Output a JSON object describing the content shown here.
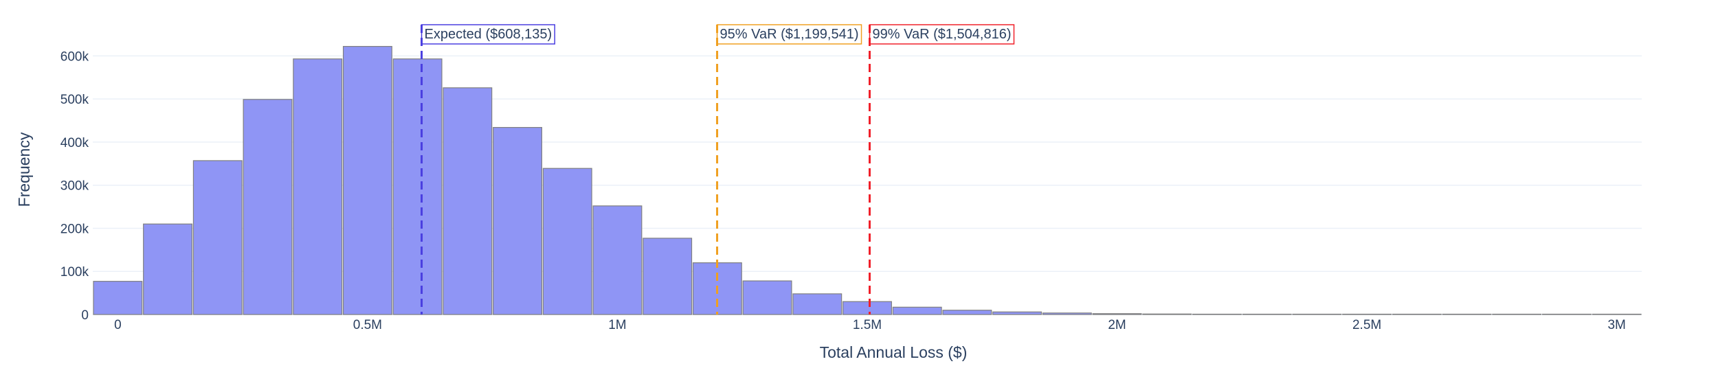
{
  "chart_data": {
    "type": "bar",
    "xlabel": "Total Annual Loss ($)",
    "ylabel": "Frequency",
    "xlim": [
      -50000,
      3050000
    ],
    "ylim": [
      0,
      650000
    ],
    "grid": true,
    "x_ticks": [
      {
        "value": 0,
        "label": "0"
      },
      {
        "value": 500000,
        "label": "0.5M"
      },
      {
        "value": 1000000,
        "label": "1M"
      },
      {
        "value": 1500000,
        "label": "1.5M"
      },
      {
        "value": 2000000,
        "label": "2M"
      },
      {
        "value": 2500000,
        "label": "2.5M"
      },
      {
        "value": 3000000,
        "label": "3M"
      }
    ],
    "y_ticks": [
      {
        "value": 0,
        "label": "0"
      },
      {
        "value": 100000,
        "label": "100k"
      },
      {
        "value": 200000,
        "label": "200k"
      },
      {
        "value": 300000,
        "label": "300k"
      },
      {
        "value": 400000,
        "label": "400k"
      },
      {
        "value": 500000,
        "label": "500k"
      },
      {
        "value": 600000,
        "label": "600k"
      }
    ],
    "bar_color": "#8f95f5",
    "bar_line_color": "#7f7f7f",
    "bins": [
      {
        "x0": -50000,
        "x1": 50000,
        "count": 77000
      },
      {
        "x0": 50000,
        "x1": 150000,
        "count": 210000
      },
      {
        "x0": 150000,
        "x1": 250000,
        "count": 357000
      },
      {
        "x0": 250000,
        "x1": 350000,
        "count": 499000
      },
      {
        "x0": 350000,
        "x1": 450000,
        "count": 593000
      },
      {
        "x0": 450000,
        "x1": 550000,
        "count": 622000
      },
      {
        "x0": 550000,
        "x1": 650000,
        "count": 593000
      },
      {
        "x0": 650000,
        "x1": 750000,
        "count": 526000
      },
      {
        "x0": 750000,
        "x1": 850000,
        "count": 434000
      },
      {
        "x0": 850000,
        "x1": 950000,
        "count": 339000
      },
      {
        "x0": 950000,
        "x1": 1050000,
        "count": 252000
      },
      {
        "x0": 1050000,
        "x1": 1150000,
        "count": 177000
      },
      {
        "x0": 1150000,
        "x1": 1250000,
        "count": 120000
      },
      {
        "x0": 1250000,
        "x1": 1350000,
        "count": 78000
      },
      {
        "x0": 1350000,
        "x1": 1450000,
        "count": 48000
      },
      {
        "x0": 1450000,
        "x1": 1550000,
        "count": 30000
      },
      {
        "x0": 1550000,
        "x1": 1650000,
        "count": 17000
      },
      {
        "x0": 1650000,
        "x1": 1750000,
        "count": 10000
      },
      {
        "x0": 1750000,
        "x1": 1850000,
        "count": 6000
      },
      {
        "x0": 1850000,
        "x1": 1950000,
        "count": 3500
      },
      {
        "x0": 1950000,
        "x1": 2050000,
        "count": 2000
      },
      {
        "x0": 2050000,
        "x1": 2150000,
        "count": 1200
      },
      {
        "x0": 2150000,
        "x1": 2250000,
        "count": 700
      },
      {
        "x0": 2250000,
        "x1": 2350000,
        "count": 400
      },
      {
        "x0": 2350000,
        "x1": 2450000,
        "count": 250
      },
      {
        "x0": 2450000,
        "x1": 2550000,
        "count": 150
      },
      {
        "x0": 2550000,
        "x1": 2650000,
        "count": 90
      },
      {
        "x0": 2650000,
        "x1": 2750000,
        "count": 50
      },
      {
        "x0": 2750000,
        "x1": 2850000,
        "count": 30
      },
      {
        "x0": 2850000,
        "x1": 2950000,
        "count": 15
      },
      {
        "x0": 2950000,
        "x1": 3050000,
        "count": 8
      }
    ],
    "vlines": [
      {
        "name": "expected-line",
        "x": 608135,
        "color": "#4a3fe0",
        "label": "Expected ($608,135)",
        "border": "#4a3fe0"
      },
      {
        "name": "var95-line",
        "x": 1199541,
        "color": "#f0a020",
        "label": "95% VaR ($1,199,541)",
        "border": "#f0a020"
      },
      {
        "name": "var99-line",
        "x": 1504816,
        "color": "#f0202a",
        "label": "99% VaR ($1,504,816)",
        "border": "#f0202a"
      }
    ]
  }
}
